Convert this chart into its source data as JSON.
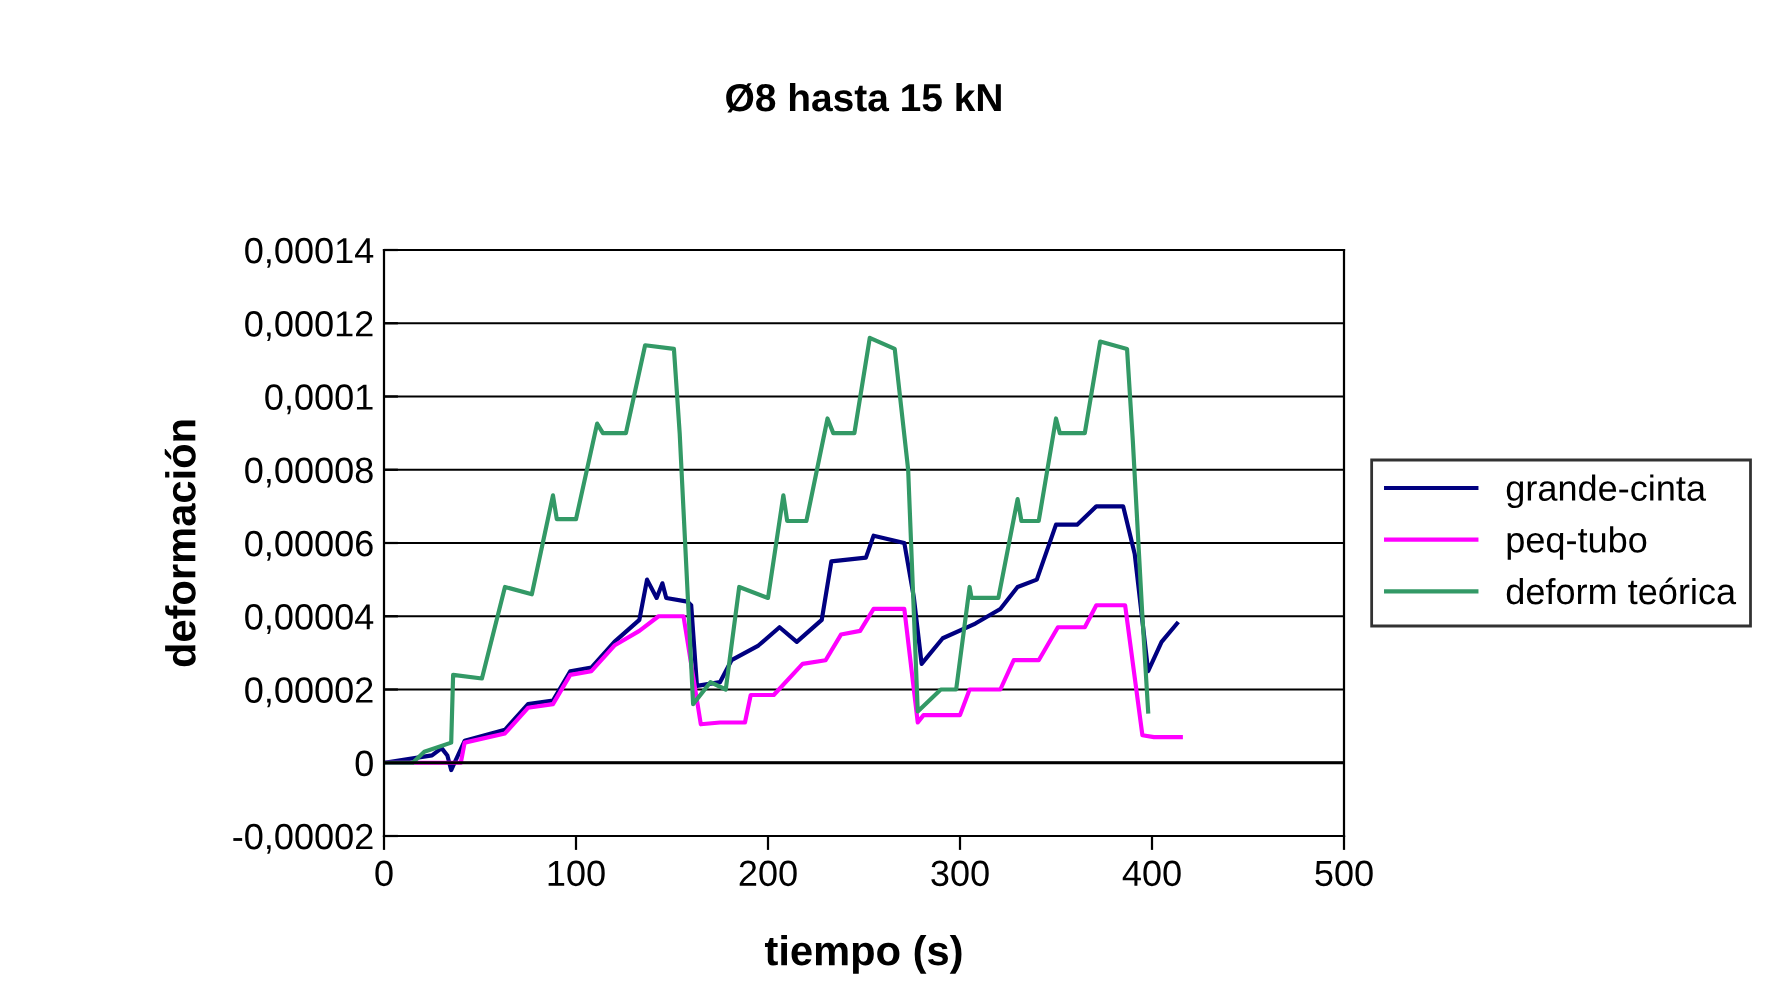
{
  "chart_data": {
    "type": "line",
    "title": "Ø8 hasta 15 kN",
    "xlabel": "tiempo (s)",
    "ylabel": "deformación",
    "xlim": [
      0,
      500
    ],
    "xticks": [
      0,
      100,
      200,
      300,
      400,
      500
    ],
    "ylim": [
      -2e-05,
      0.00014
    ],
    "yticks": [
      {
        "value": -2e-05,
        "label": "-0,00002"
      },
      {
        "value": 0,
        "label": "0"
      },
      {
        "value": 2e-05,
        "label": "0,00002"
      },
      {
        "value": 4e-05,
        "label": "0,00004"
      },
      {
        "value": 6e-05,
        "label": "0,00006"
      },
      {
        "value": 8e-05,
        "label": "0,00008"
      },
      {
        "value": 0.0001,
        "label": "0,0001"
      },
      {
        "value": 0.00012,
        "label": "0,00012"
      },
      {
        "value": 0.00014,
        "label": "0,00014"
      }
    ],
    "grid": "y",
    "legend": "right",
    "marker": "none",
    "line_style": "solid",
    "series": [
      {
        "name": "grande-cinta",
        "color": "#000080",
        "x": [
          0,
          25,
          30,
          33,
          35,
          42,
          63,
          75,
          88,
          97,
          108,
          120,
          133,
          137,
          142,
          145,
          147,
          158,
          160,
          163,
          175,
          181,
          195,
          206,
          215,
          228,
          233,
          251,
          255,
          271,
          276,
          280,
          291,
          308,
          321,
          330,
          340,
          350,
          361,
          371,
          385,
          391,
          398,
          405,
          413
        ],
        "values": [
          0,
          2e-06,
          4e-06,
          2e-06,
          -2e-06,
          6e-06,
          9e-06,
          1.6e-05,
          1.7e-05,
          2.5e-05,
          2.6e-05,
          3.3e-05,
          3.9e-05,
          5e-05,
          4.5e-05,
          4.9e-05,
          4.5e-05,
          4.4e-05,
          4.3e-05,
          2.1e-05,
          2.2e-05,
          2.8e-05,
          3.2e-05,
          3.7e-05,
          3.3e-05,
          3.9e-05,
          5.5e-05,
          5.6e-05,
          6.2e-05,
          6e-05,
          4.5e-05,
          2.7e-05,
          3.4e-05,
          3.8e-05,
          4.2e-05,
          4.8e-05,
          5e-05,
          6.5e-05,
          6.5e-05,
          7e-05,
          7e-05,
          5.7e-05,
          2.5e-05,
          3.3e-05,
          3.8e-05
        ]
      },
      {
        "name": "peq-tubo",
        "color": "#ff00ff",
        "x": [
          0,
          40,
          42,
          63,
          75,
          88,
          97,
          108,
          120,
          133,
          143,
          156,
          165,
          175,
          188,
          191,
          203,
          218,
          230,
          238,
          248,
          255,
          271,
          278,
          281,
          300,
          305,
          321,
          328,
          341,
          351,
          365,
          371,
          386,
          395,
          401,
          415
        ],
        "values": [
          0,
          0,
          5.5e-06,
          8e-06,
          1.5e-05,
          1.6e-05,
          2.4e-05,
          2.5e-05,
          3.2e-05,
          3.6e-05,
          4e-05,
          4e-05,
          1.05e-05,
          1.1e-05,
          1.1e-05,
          1.85e-05,
          1.85e-05,
          2.7e-05,
          2.8e-05,
          3.5e-05,
          3.6e-05,
          4.2e-05,
          4.2e-05,
          1.1e-05,
          1.3e-05,
          1.3e-05,
          2e-05,
          2e-05,
          2.8e-05,
          2.8e-05,
          3.7e-05,
          3.7e-05,
          4.3e-05,
          4.3e-05,
          7.5e-06,
          7e-06,
          7e-06
        ]
      },
      {
        "name": "deform teórica",
        "color": "#339966",
        "x": [
          0,
          15,
          21,
          35,
          36,
          51,
          63,
          77,
          88,
          90,
          100,
          111,
          114,
          126,
          136,
          151,
          154,
          161,
          170,
          178,
          185,
          200,
          208,
          210,
          220,
          231,
          234,
          245,
          253,
          266,
          273,
          278,
          290,
          298,
          305,
          306,
          320,
          330,
          332,
          341,
          350,
          352,
          365,
          373,
          387,
          390,
          395,
          398
        ],
        "values": [
          0,
          0,
          3e-06,
          5.5e-06,
          2.4e-05,
          2.3e-05,
          4.8e-05,
          4.6e-05,
          7.3e-05,
          6.65e-05,
          6.65e-05,
          9.26e-05,
          9e-05,
          9e-05,
          0.000114,
          0.000113,
          9e-05,
          1.6e-05,
          2.2e-05,
          2e-05,
          4.8e-05,
          4.5e-05,
          7.3e-05,
          6.6e-05,
          6.6e-05,
          9.4e-05,
          9e-05,
          9e-05,
          0.000116,
          0.000113,
          8e-05,
          1.4e-05,
          2e-05,
          2e-05,
          4.8e-05,
          4.5e-05,
          4.5e-05,
          7.2e-05,
          6.6e-05,
          6.6e-05,
          9.4e-05,
          9e-05,
          9e-05,
          0.000115,
          0.000113,
          8.8e-05,
          4e-05,
          1.4e-05
        ]
      }
    ]
  }
}
